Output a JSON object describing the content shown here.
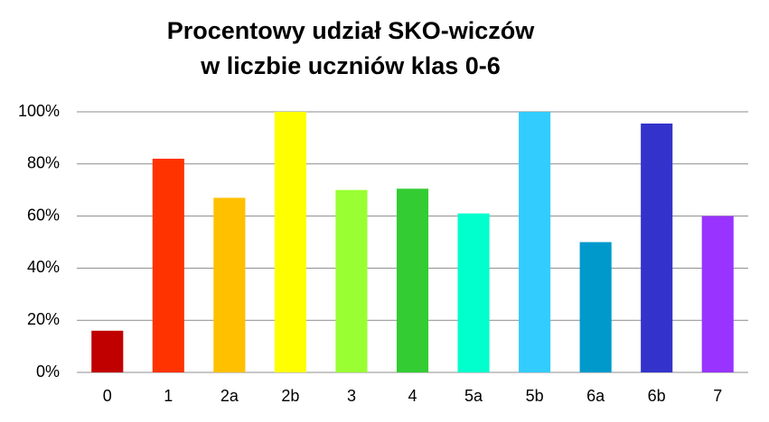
{
  "chart_data": {
    "type": "bar",
    "title": [
      "Procentowy udział SKO-wiczów",
      "w liczbie uczniów klas 0-6"
    ],
    "categories": [
      "0",
      "1",
      "2a",
      "2b",
      "3",
      "4",
      "5a",
      "5b",
      "6a",
      "6b",
      "7"
    ],
    "values": [
      16,
      82,
      67,
      100,
      70,
      70.5,
      61,
      100,
      50,
      95.5,
      60
    ],
    "colors": [
      "#c00000",
      "#ff3300",
      "#ffc000",
      "#ffff00",
      "#99ff33",
      "#33cc33",
      "#00ffcc",
      "#33ccff",
      "#0099cc",
      "#3333cc",
      "#9933ff"
    ],
    "ylim": [
      0,
      100
    ],
    "yticks": [
      {
        "value": 0,
        "label": "0%"
      },
      {
        "value": 20,
        "label": "20%"
      },
      {
        "value": 40,
        "label": "40%"
      },
      {
        "value": 60,
        "label": "60%"
      },
      {
        "value": 80,
        "label": "80%"
      },
      {
        "value": 100,
        "label": "100%"
      }
    ],
    "grid": true
  }
}
